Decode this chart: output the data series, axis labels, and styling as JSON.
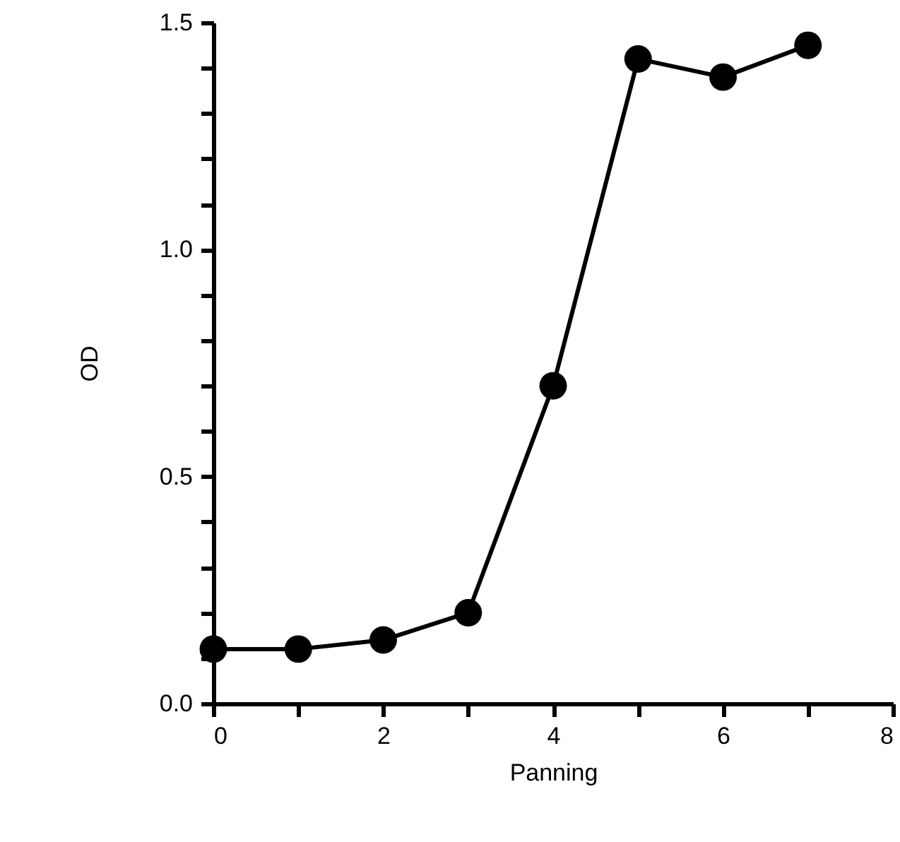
{
  "chart_data": {
    "type": "line",
    "xlabel": "Panning",
    "ylabel": "OD",
    "x": [
      0,
      1,
      2,
      3,
      4,
      5,
      6,
      7
    ],
    "series": [
      {
        "color": "#000000",
        "values": [
          0.12,
          0.12,
          0.14,
          0.2,
          0.7,
          1.42,
          1.38,
          1.45
        ]
      }
    ],
    "xlim": [
      0,
      8
    ],
    "xticks": [
      0,
      {
        "value": 1,
        "label": null
      },
      2,
      {
        "value": 3,
        "label": null
      },
      4,
      {
        "value": 5,
        "label": null
      },
      6,
      {
        "value": 7,
        "label": null
      },
      8
    ],
    "ylim": [
      0,
      1.5
    ],
    "yticks": [
      {
        "value": 0,
        "label": "0.0"
      },
      {
        "value": 0.1,
        "label": null
      },
      {
        "value": 0.2,
        "label": null
      },
      {
        "value": 0.3,
        "label": null
      },
      {
        "value": 0.4,
        "label": null
      },
      {
        "value": 0.5,
        "label": "0.5"
      },
      {
        "value": 0.6,
        "label": null
      },
      {
        "value": 0.7,
        "label": null
      },
      {
        "value": 0.8,
        "label": null
      },
      {
        "value": 0.9,
        "label": null
      },
      {
        "value": 1,
        "label": "1.0"
      },
      {
        "value": 1.1,
        "label": null
      },
      {
        "value": 1.2,
        "label": null
      },
      {
        "value": 1.3,
        "label": null
      },
      {
        "value": 1.4,
        "label": null
      },
      {
        "value": 1.5,
        "label": "1.5"
      }
    ],
    "grid": false,
    "marker": "circle",
    "line_style": "solid"
  }
}
